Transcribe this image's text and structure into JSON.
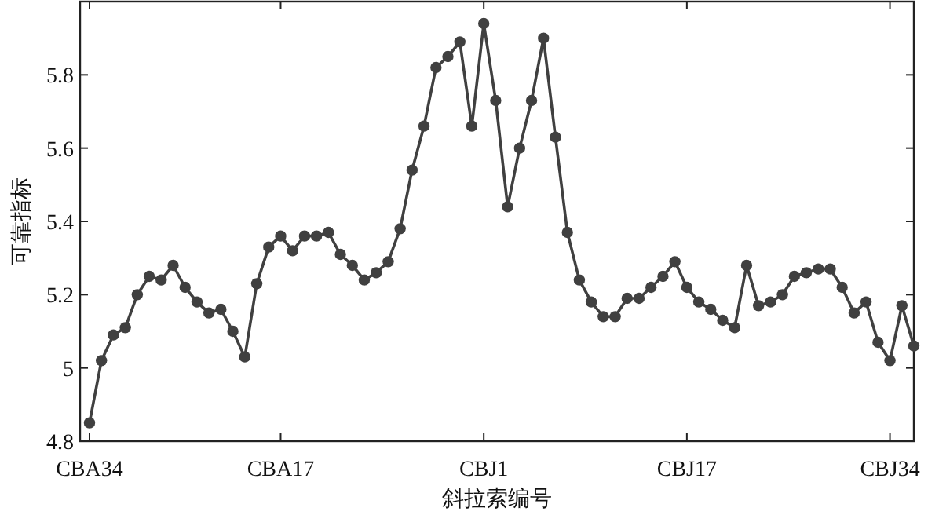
{
  "chart_data": {
    "type": "line",
    "xlabel": "斜拉索编号",
    "ylabel": "可靠指标",
    "categories": [
      "CBA34",
      null,
      null,
      null,
      null,
      null,
      null,
      null,
      null,
      null,
      null,
      null,
      null,
      null,
      null,
      null,
      "CBA17",
      null,
      null,
      null,
      null,
      null,
      null,
      null,
      null,
      null,
      null,
      null,
      null,
      null,
      null,
      null,
      null,
      "CBJ1",
      null,
      null,
      null,
      null,
      null,
      null,
      null,
      null,
      null,
      null,
      null,
      null,
      null,
      null,
      null,
      null,
      "CBJ17",
      null,
      null,
      null,
      null,
      null,
      null,
      null,
      null,
      null,
      null,
      null,
      null,
      null,
      null,
      null,
      null,
      "CBJ34",
      null,
      null
    ],
    "series": [
      {
        "color": "#404040",
        "values": [
          4.85,
          5.02,
          5.09,
          5.11,
          5.2,
          5.25,
          5.24,
          5.28,
          5.22,
          5.18,
          5.15,
          5.16,
          5.1,
          5.03,
          5.23,
          5.33,
          5.36,
          5.32,
          5.36,
          5.36,
          5.37,
          5.31,
          5.28,
          5.24,
          5.26,
          5.29,
          5.38,
          5.54,
          5.66,
          5.82,
          5.85,
          5.89,
          5.66,
          5.94,
          5.73,
          5.44,
          5.6,
          5.73,
          5.9,
          5.63,
          5.37,
          5.24,
          5.18,
          5.14,
          5.14,
          5.19,
          5.19,
          5.22,
          5.25,
          5.29,
          5.22,
          5.18,
          5.16,
          5.13,
          5.11,
          5.28,
          5.17,
          5.18,
          5.2,
          5.25,
          5.26,
          5.27,
          5.27,
          5.22,
          5.15,
          5.18,
          5.07,
          5.02,
          5.17,
          5.06
        ]
      }
    ],
    "ylim": [
      4.8,
      6.0
    ],
    "yticks": [
      4.8,
      5,
      5.2,
      5.4,
      5.6,
      5.8
    ],
    "marker": "circle",
    "line_style": "solid",
    "grid": false
  }
}
